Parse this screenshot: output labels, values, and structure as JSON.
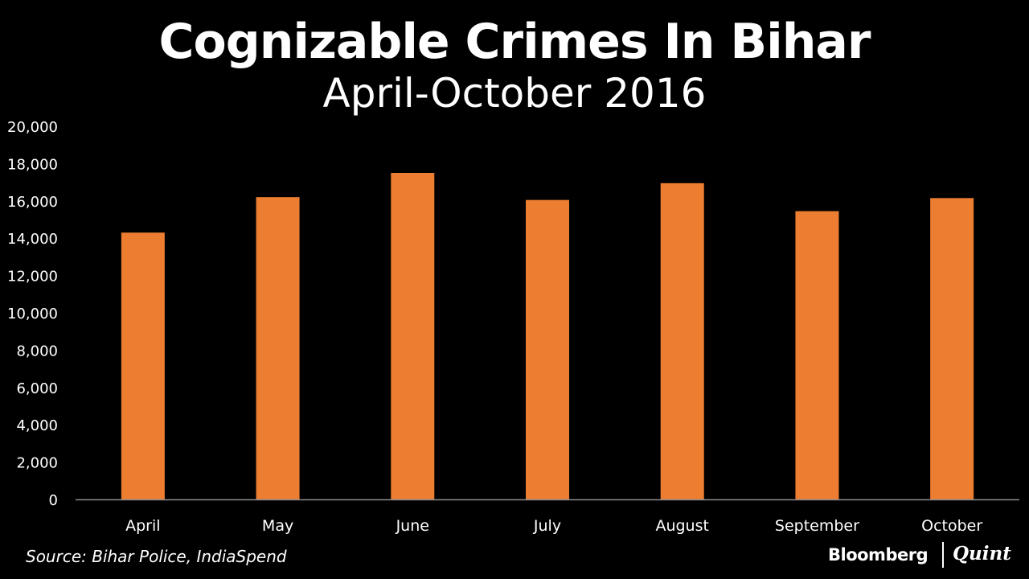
{
  "chart_data": {
    "type": "bar",
    "title": "Cognizable Crimes In Bihar",
    "subtitle": "April-October 2016",
    "categories": [
      "April",
      "May",
      "June",
      "July",
      "August",
      "September",
      "October"
    ],
    "values": [
      14300,
      16200,
      17500,
      16050,
      16950,
      15450,
      16150
    ],
    "ylim": [
      0,
      20000
    ],
    "ytick_labels": [
      "0",
      "2,000",
      "4,000",
      "6,000",
      "8,000",
      "10,000",
      "12,000",
      "14,000",
      "16,000",
      "18,000",
      "20,000"
    ],
    "grid": false,
    "xlabel": "",
    "ylabel": "",
    "bar_color": "#ED7D31",
    "axis_color": "#8c8c8c",
    "text_color": "#ffffff",
    "background": "#000000"
  },
  "footer": {
    "source": "Source: Bihar Police, IndiaSpend",
    "brand_left": "Bloomberg",
    "brand_right": "Quint"
  }
}
